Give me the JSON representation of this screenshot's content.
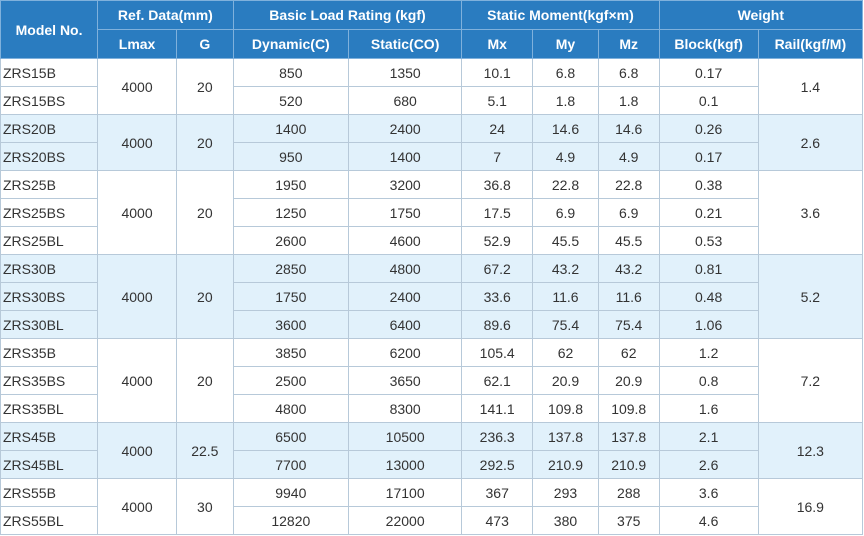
{
  "headers": {
    "model": "Model No.",
    "ref_data": "Ref. Data(mm)",
    "basic_load": "Basic Load Rating (kgf)",
    "static_moment": "Static Moment(kgf×m)",
    "weight": "Weight",
    "lmax": "Lmax",
    "g": "G",
    "dynamic": "Dynamic(C)",
    "static": "Static(CO)",
    "mx": "Mx",
    "my": "My",
    "mz": "Mz",
    "block": "Block(kgf)",
    "rail": "Rail(kgf/M)"
  },
  "groups": [
    {
      "lmax": "4000",
      "g": "20",
      "rail": "1.4",
      "rows": [
        {
          "model": "ZRS15B",
          "dynamic": "850",
          "static": "1350",
          "mx": "10.1",
          "my": "6.8",
          "mz": "6.8",
          "block": "0.17"
        },
        {
          "model": "ZRS15BS",
          "dynamic": "520",
          "static": "680",
          "mx": "5.1",
          "my": "1.8",
          "mz": "1.8",
          "block": "0.1"
        }
      ]
    },
    {
      "lmax": "4000",
      "g": "20",
      "rail": "2.6",
      "rows": [
        {
          "model": "ZRS20B",
          "dynamic": "1400",
          "static": "2400",
          "mx": "24",
          "my": "14.6",
          "mz": "14.6",
          "block": "0.26"
        },
        {
          "model": "ZRS20BS",
          "dynamic": "950",
          "static": "1400",
          "mx": "7",
          "my": "4.9",
          "mz": "4.9",
          "block": "0.17"
        }
      ]
    },
    {
      "lmax": "4000",
      "g": "20",
      "rail": "3.6",
      "rows": [
        {
          "model": "ZRS25B",
          "dynamic": "1950",
          "static": "3200",
          "mx": "36.8",
          "my": "22.8",
          "mz": "22.8",
          "block": "0.38"
        },
        {
          "model": "ZRS25BS",
          "dynamic": "1250",
          "static": "1750",
          "mx": "17.5",
          "my": "6.9",
          "mz": "6.9",
          "block": "0.21"
        },
        {
          "model": "ZRS25BL",
          "dynamic": "2600",
          "static": "4600",
          "mx": "52.9",
          "my": "45.5",
          "mz": "45.5",
          "block": "0.53"
        }
      ]
    },
    {
      "lmax": "4000",
      "g": "20",
      "rail": "5.2",
      "rows": [
        {
          "model": "ZRS30B",
          "dynamic": "2850",
          "static": "4800",
          "mx": "67.2",
          "my": "43.2",
          "mz": "43.2",
          "block": "0.81"
        },
        {
          "model": "ZRS30BS",
          "dynamic": "1750",
          "static": "2400",
          "mx": "33.6",
          "my": "11.6",
          "mz": "11.6",
          "block": "0.48"
        },
        {
          "model": "ZRS30BL",
          "dynamic": "3600",
          "static": "6400",
          "mx": "89.6",
          "my": "75.4",
          "mz": "75.4",
          "block": "1.06"
        }
      ]
    },
    {
      "lmax": "4000",
      "g": "20",
      "rail": "7.2",
      "rows": [
        {
          "model": "ZRS35B",
          "dynamic": "3850",
          "static": "6200",
          "mx": "105.4",
          "my": "62",
          "mz": "62",
          "block": "1.2"
        },
        {
          "model": "ZRS35BS",
          "dynamic": "2500",
          "static": "3650",
          "mx": "62.1",
          "my": "20.9",
          "mz": "20.9",
          "block": "0.8"
        },
        {
          "model": "ZRS35BL",
          "dynamic": "4800",
          "static": "8300",
          "mx": "141.1",
          "my": "109.8",
          "mz": "109.8",
          "block": "1.6"
        }
      ]
    },
    {
      "lmax": "4000",
      "g": "22.5",
      "rail": "12.3",
      "rows": [
        {
          "model": "ZRS45B",
          "dynamic": "6500",
          "static": "10500",
          "mx": "236.3",
          "my": "137.8",
          "mz": "137.8",
          "block": "2.1"
        },
        {
          "model": "ZRS45BL",
          "dynamic": "7700",
          "static": "13000",
          "mx": "292.5",
          "my": "210.9",
          "mz": "210.9",
          "block": "2.6"
        }
      ]
    },
    {
      "lmax": "4000",
      "g": "30",
      "rail": "16.9",
      "rows": [
        {
          "model": "ZRS55B",
          "dynamic": "9940",
          "static": "17100",
          "mx": "367",
          "my": "293",
          "mz": "288",
          "block": "3.6"
        },
        {
          "model": "ZRS55BL",
          "dynamic": "12820",
          "static": "22000",
          "mx": "473",
          "my": "380",
          "mz": "375",
          "block": "4.6"
        }
      ]
    }
  ]
}
